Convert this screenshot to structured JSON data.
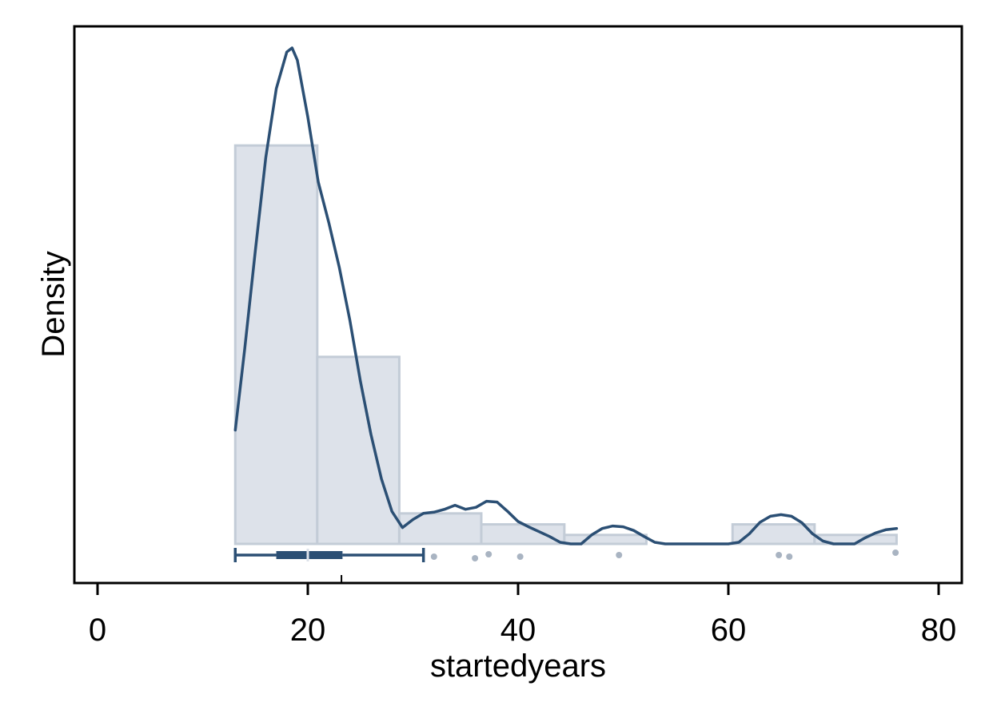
{
  "chart_data": {
    "type": "histogram",
    "xlabel": "startedyears",
    "ylabel": "Density",
    "xlim": [
      -5,
      81
    ],
    "xticks": [
      0,
      20,
      40,
      60,
      80
    ],
    "tick_labels": [
      "0",
      "20",
      "40",
      "60",
      "80"
    ],
    "y_tick_labels_shown": false,
    "grid": false,
    "colors": {
      "bar_fill": "#dde2ea",
      "bar_stroke": "#c3ccd7",
      "density_line": "#2b4f74",
      "boxplot": "#2b4f74",
      "outliers": "#a9b4c2"
    },
    "bins": [
      {
        "start": 13.1,
        "end": 20.9,
        "density": 0.098
      },
      {
        "start": 20.9,
        "end": 28.7,
        "density": 0.046
      },
      {
        "start": 28.7,
        "end": 36.5,
        "density": 0.0075
      },
      {
        "start": 36.5,
        "end": 44.4,
        "density": 0.0048
      },
      {
        "start": 44.4,
        "end": 52.2,
        "density": 0.0022
      },
      {
        "start": 52.2,
        "end": 60.4,
        "density": 0.0
      },
      {
        "start": 60.4,
        "end": 68.2,
        "density": 0.0048
      },
      {
        "start": 68.2,
        "end": 76.0,
        "density": 0.0022
      }
    ],
    "density_curve": {
      "x": [
        13.1,
        14.0,
        15.0,
        16.0,
        17.0,
        18.0,
        18.5,
        19.0,
        20.0,
        21.0,
        22.0,
        23.0,
        24.0,
        25.0,
        26.0,
        27.0,
        28.0,
        29.0,
        30.0,
        31.0,
        32.0,
        33.0,
        34.0,
        35.0,
        36.0,
        37.0,
        38.0,
        39.0,
        40.0,
        41.0,
        42.0,
        43.0,
        44.0,
        45.0,
        46.0,
        47.0,
        48.0,
        49.0,
        50.0,
        51.0,
        52.0,
        53.0,
        54.0,
        56.0,
        58.0,
        60.0,
        61.0,
        62.0,
        63.0,
        64.0,
        65.0,
        66.0,
        67.0,
        68.0,
        69.0,
        70.0,
        71.0,
        72.0,
        73.0,
        74.0,
        75.0,
        76.0
      ],
      "y": [
        0.028,
        0.048,
        0.072,
        0.095,
        0.112,
        0.121,
        0.122,
        0.119,
        0.105,
        0.089,
        0.079,
        0.068,
        0.055,
        0.04,
        0.027,
        0.016,
        0.008,
        0.004,
        0.006,
        0.0075,
        0.0078,
        0.0085,
        0.0095,
        0.0085,
        0.009,
        0.0105,
        0.0103,
        0.008,
        0.0055,
        0.0042,
        0.003,
        0.0018,
        0.0004,
        0.0,
        0.0,
        0.0022,
        0.0038,
        0.0044,
        0.0042,
        0.0033,
        0.0018,
        0.0004,
        0.0,
        0.0,
        0.0,
        0.0,
        0.0004,
        0.0025,
        0.0053,
        0.0068,
        0.0072,
        0.0068,
        0.0052,
        0.0025,
        0.0007,
        0.0,
        0.0,
        0.0,
        0.0015,
        0.0027,
        0.0035,
        0.0038
      ]
    },
    "boxplot": {
      "min": 13.1,
      "q1": 17.0,
      "median": 20.0,
      "q3": 23.3,
      "max": 31.0,
      "outliers": [
        32.0,
        35.9,
        37.2,
        40.2,
        49.6,
        64.8,
        65.8,
        75.9
      ]
    }
  }
}
